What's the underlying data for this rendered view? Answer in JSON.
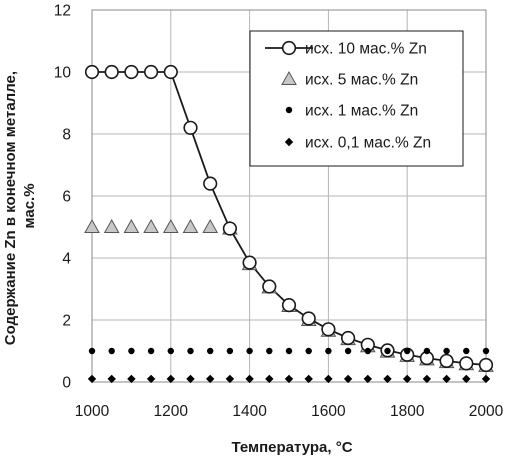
{
  "chart_data": {
    "type": "line",
    "xlabel": "Температура, °С",
    "ylabel_lines": [
      "Содержание Zn в конечном металле,",
      "мас.%"
    ],
    "xlim": [
      1000,
      2000
    ],
    "ylim": [
      0,
      12
    ],
    "xticks": [
      1000,
      1200,
      1400,
      1600,
      1800,
      2000
    ],
    "yticks": [
      0,
      2,
      4,
      6,
      8,
      10,
      12
    ],
    "grid": true,
    "legend_position": "top-right",
    "x": [
      1000,
      1050,
      1100,
      1150,
      1200,
      1250,
      1300,
      1350,
      1400,
      1450,
      1500,
      1550,
      1600,
      1650,
      1700,
      1750,
      1800,
      1850,
      1900,
      1950,
      2000
    ],
    "series": [
      {
        "name": "исх. 10 мас.% Zn",
        "marker": "circle-open",
        "line": true,
        "color": "#1a1a1a",
        "values": [
          10,
          10,
          10,
          10,
          10,
          8.2,
          6.4,
          4.95,
          3.85,
          3.08,
          2.48,
          2.05,
          1.7,
          1.42,
          1.2,
          1.02,
          0.88,
          0.77,
          0.68,
          0.6,
          0.55
        ]
      },
      {
        "name": "исх. 5 мас.% Zn",
        "marker": "triangle-gray",
        "line": false,
        "color": "#bfbfbf",
        "values": [
          5,
          5,
          5,
          5,
          5,
          5,
          5,
          4.95,
          3.8,
          3.05,
          2.45,
          2.0,
          1.65,
          1.38,
          1.15,
          0.98,
          0.84,
          0.73,
          0.64,
          0.57,
          0.52
        ]
      },
      {
        "name": "исх. 1 мас.% Zn",
        "marker": "dot",
        "line": false,
        "color": "#000000",
        "values": [
          1,
          1,
          1,
          1,
          1,
          1,
          1,
          1,
          1,
          1,
          1,
          1,
          1,
          1,
          1,
          1,
          1,
          1,
          1,
          1,
          1
        ]
      },
      {
        "name": "исх. 0,1 мас.% Zn",
        "marker": "diamond",
        "line": false,
        "color": "#000000",
        "values": [
          0.1,
          0.1,
          0.1,
          0.1,
          0.1,
          0.1,
          0.1,
          0.1,
          0.1,
          0.1,
          0.1,
          0.1,
          0.1,
          0.1,
          0.1,
          0.1,
          0.1,
          0.1,
          0.1,
          0.1,
          0.1
        ]
      }
    ]
  }
}
